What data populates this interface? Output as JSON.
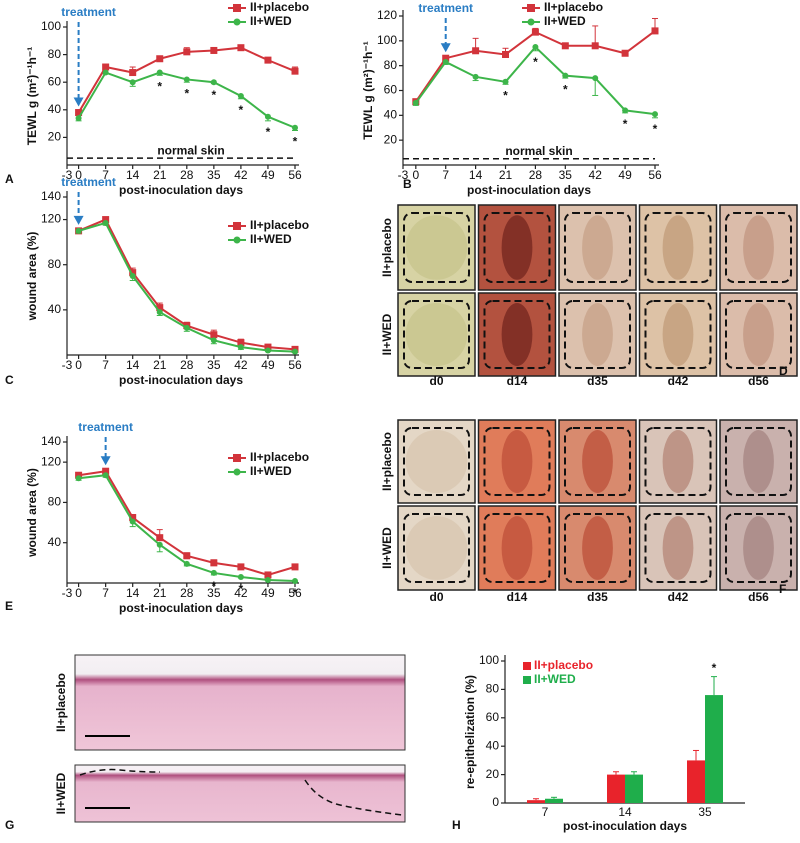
{
  "chart_data": [
    {
      "type": "line",
      "label": "A",
      "xlabel": "post-inoculation days",
      "ylabel": "TEWL g (m²)⁻¹h⁻¹",
      "x": [
        0,
        7,
        14,
        21,
        28,
        35,
        42,
        49,
        56
      ],
      "xlim": [
        -3,
        56
      ],
      "xticks": [
        -3,
        0,
        7,
        14,
        21,
        28,
        35,
        42,
        49,
        56
      ],
      "ylim": [
        0,
        100
      ],
      "yticks": [
        20,
        40,
        60,
        80,
        100
      ],
      "legend": "top-right",
      "treatment_label": "treatment",
      "treatment_day": 0,
      "reference_line": {
        "label": "normal skin",
        "value": 5
      },
      "significance_label": "*",
      "series": [
        {
          "name": "II+placebo",
          "color": "#d2343b",
          "marker": "square",
          "values": [
            38,
            71,
            67,
            77,
            82,
            83,
            85,
            76,
            68
          ],
          "errors": [
            2,
            1,
            4,
            1,
            3,
            1,
            1,
            1,
            3
          ]
        },
        {
          "name": "II+WED",
          "color": "#3db54a",
          "marker": "circle",
          "values": [
            34,
            67,
            60,
            67,
            62,
            60,
            50,
            35,
            27
          ],
          "errors": [
            2,
            1,
            3,
            2,
            2,
            1,
            2,
            3,
            2
          ],
          "significant_at": [
            21,
            28,
            35,
            42,
            49,
            56
          ]
        }
      ]
    },
    {
      "type": "line",
      "label": "B",
      "xlabel": "post-inoculation days",
      "ylabel": "TEWL g (m²)⁻¹h⁻¹",
      "x": [
        0,
        7,
        14,
        21,
        28,
        35,
        42,
        49,
        56
      ],
      "xlim": [
        -3,
        56
      ],
      "xticks": [
        -3,
        0,
        7,
        14,
        21,
        28,
        35,
        42,
        49,
        56
      ],
      "ylim": [
        0,
        120
      ],
      "yticks": [
        20,
        40,
        60,
        80,
        100,
        120
      ],
      "legend": "top-right",
      "treatment_label": "treatment",
      "treatment_day": 7,
      "reference_line": {
        "label": "normal skin",
        "value": 5
      },
      "significance_label": "*",
      "series": [
        {
          "name": "II+placebo",
          "color": "#d2343b",
          "marker": "square",
          "values": [
            51,
            86,
            92,
            89,
            107,
            96,
            96,
            90,
            108
          ],
          "errors": [
            2,
            2,
            10,
            5,
            3,
            1,
            16,
            1,
            10
          ]
        },
        {
          "name": "II+WED",
          "color": "#3db54a",
          "marker": "circle",
          "values": [
            50,
            83,
            71,
            67,
            95,
            72,
            70,
            44,
            41
          ],
          "errors": [
            2,
            2,
            3,
            2,
            3,
            2,
            14,
            2,
            3
          ],
          "significant_at": [
            21,
            28,
            35,
            49,
            56
          ]
        }
      ]
    },
    {
      "type": "line",
      "label": "C",
      "xlabel": "post-inoculation days",
      "ylabel": "wound area (%)",
      "x": [
        0,
        7,
        14,
        21,
        28,
        35,
        42,
        49,
        56
      ],
      "xlim": [
        -3,
        56
      ],
      "xticks": [
        -3,
        0,
        7,
        14,
        21,
        28,
        35,
        42,
        49,
        56
      ],
      "ylim": [
        0,
        140
      ],
      "yticks": [
        40,
        80,
        120,
        140
      ],
      "legend": "top-right",
      "treatment_label": "treatment",
      "treatment_day": 0,
      "series": [
        {
          "name": "II+placebo",
          "color": "#d2343b",
          "marker": "square",
          "values": [
            110,
            120,
            73,
            42,
            26,
            18,
            11,
            7,
            5
          ],
          "errors": [
            2,
            2,
            4,
            4,
            3,
            4,
            3,
            2,
            1
          ]
        },
        {
          "name": "II+WED",
          "color": "#3db54a",
          "marker": "circle",
          "values": [
            110,
            117,
            70,
            38,
            24,
            13,
            7,
            4,
            3
          ],
          "errors": [
            2,
            2,
            4,
            3,
            3,
            3,
            2,
            1,
            1
          ]
        }
      ]
    },
    {
      "type": "line",
      "label": "E",
      "xlabel": "post-inoculation days",
      "ylabel": "wound area (%)",
      "x": [
        0,
        7,
        14,
        21,
        28,
        35,
        42,
        49,
        56
      ],
      "xlim": [
        -3,
        56
      ],
      "xticks": [
        -3,
        0,
        7,
        14,
        21,
        28,
        35,
        42,
        49,
        56
      ],
      "ylim": [
        0,
        140
      ],
      "yticks": [
        40,
        80,
        120,
        140
      ],
      "legend": "top-right",
      "treatment_label": "treatment",
      "treatment_day": 7,
      "significance_label": "*",
      "series": [
        {
          "name": "II+placebo",
          "color": "#d2343b",
          "marker": "square",
          "values": [
            107,
            111,
            65,
            45,
            27,
            20,
            16,
            8,
            16
          ],
          "errors": [
            2,
            2,
            3,
            8,
            3,
            3,
            2,
            1,
            2
          ]
        },
        {
          "name": "II+WED",
          "color": "#3db54a",
          "marker": "circle",
          "values": [
            104,
            107,
            61,
            38,
            19,
            10,
            6,
            3,
            2
          ],
          "errors": [
            2,
            2,
            5,
            7,
            2,
            2,
            1,
            1,
            1
          ],
          "significant_at": [
            35,
            42,
            56
          ]
        }
      ]
    },
    {
      "type": "bar",
      "label": "H",
      "xlabel": "post-inoculation days",
      "ylabel": "re-epithelization (%)",
      "categories": [
        "7",
        "14",
        "35"
      ],
      "ylim": [
        0,
        100
      ],
      "yticks": [
        0,
        20,
        40,
        60,
        80,
        100
      ],
      "legend": "top-left",
      "significance_label": "*",
      "series": [
        {
          "name": "II+placebo",
          "color": "#e8232b",
          "values": [
            2,
            20,
            30
          ],
          "errors": [
            1,
            2,
            7
          ]
        },
        {
          "name": "II+WED",
          "color": "#1fae4b",
          "values": [
            3,
            20,
            76
          ],
          "errors": [
            1,
            2,
            13
          ],
          "significant_at": [
            "35"
          ]
        }
      ]
    }
  ],
  "photo_panels": [
    {
      "label": "D",
      "rows": [
        "II+placebo",
        "II+WED"
      ],
      "columns": [
        "d0",
        "d14",
        "d35",
        "d42",
        "d56"
      ]
    },
    {
      "label": "F",
      "rows": [
        "II+placebo",
        "II+WED"
      ],
      "columns": [
        "d0",
        "d14",
        "d35",
        "d42",
        "d56"
      ]
    }
  ],
  "histology": {
    "label": "G",
    "rows": [
      "II+placebo",
      "II+WED"
    ]
  }
}
